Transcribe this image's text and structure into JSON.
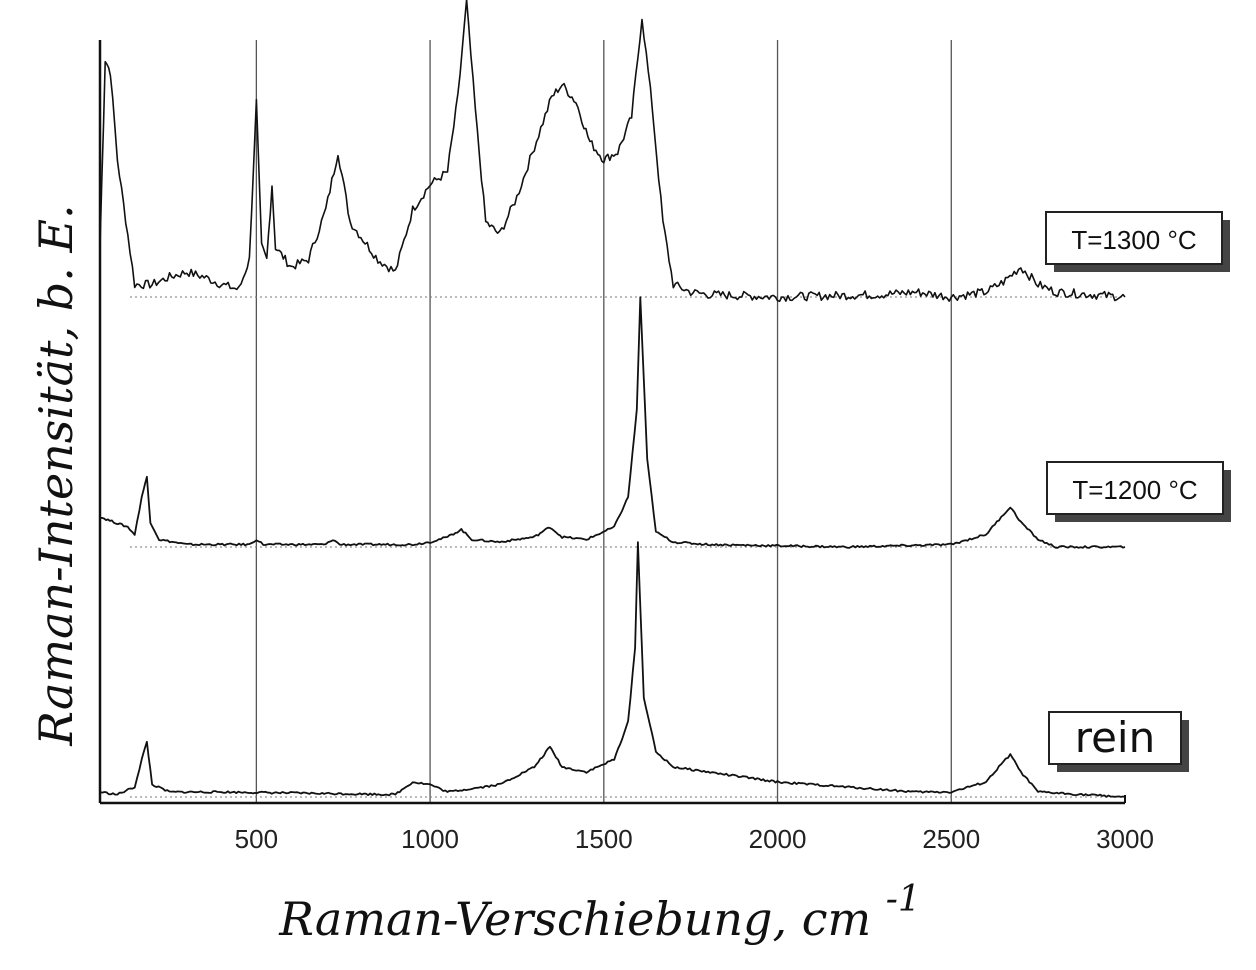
{
  "chart_data": {
    "type": "line",
    "xlabel": "Raman-Verschiebung, cm",
    "xlabel_sup": "-1",
    "ylabel": "Raman-Intensität, b. E.",
    "xlim": [
      50,
      3000
    ],
    "xticks": [
      500,
      1000,
      1500,
      2000,
      2500,
      3000
    ],
    "grid": "vertical at 500, 1000, 1500, 2000, 2500",
    "series": [
      {
        "name": "T=1300 °C",
        "offset": 2.0,
        "points": [
          [
            50,
            0.2
          ],
          [
            65,
            0.95
          ],
          [
            80,
            0.9
          ],
          [
            100,
            0.55
          ],
          [
            130,
            0.25
          ],
          [
            150,
            0.05
          ],
          [
            200,
            0.05
          ],
          [
            250,
            0.08
          ],
          [
            300,
            0.1
          ],
          [
            350,
            0.08
          ],
          [
            400,
            0.05
          ],
          [
            450,
            0.03
          ],
          [
            480,
            0.15
          ],
          [
            500,
            0.78
          ],
          [
            515,
            0.2
          ],
          [
            530,
            0.15
          ],
          [
            545,
            0.45
          ],
          [
            555,
            0.2
          ],
          [
            600,
            0.12
          ],
          [
            650,
            0.15
          ],
          [
            700,
            0.35
          ],
          [
            735,
            0.58
          ],
          [
            770,
            0.3
          ],
          [
            850,
            0.15
          ],
          [
            900,
            0.1
          ],
          [
            950,
            0.35
          ],
          [
            1000,
            0.45
          ],
          [
            1050,
            0.5
          ],
          [
            1080,
            0.8
          ],
          [
            1105,
            1.18
          ],
          [
            1130,
            0.75
          ],
          [
            1160,
            0.3
          ],
          [
            1200,
            0.25
          ],
          [
            1250,
            0.4
          ],
          [
            1300,
            0.6
          ],
          [
            1350,
            0.8
          ],
          [
            1380,
            0.85
          ],
          [
            1420,
            0.78
          ],
          [
            1460,
            0.62
          ],
          [
            1500,
            0.55
          ],
          [
            1540,
            0.58
          ],
          [
            1580,
            0.72
          ],
          [
            1610,
            1.12
          ],
          [
            1640,
            0.75
          ],
          [
            1670,
            0.3
          ],
          [
            1700,
            0.05
          ],
          [
            1750,
            0.02
          ],
          [
            1800,
            0.01
          ],
          [
            2000,
            0.0
          ],
          [
            2300,
            0.01
          ],
          [
            2400,
            0.02
          ],
          [
            2500,
            0.0
          ],
          [
            2600,
            0.02
          ],
          [
            2650,
            0.06
          ],
          [
            2700,
            0.12
          ],
          [
            2750,
            0.05
          ],
          [
            2800,
            0.02
          ],
          [
            2900,
            0.01
          ],
          [
            3000,
            0.0
          ]
        ]
      },
      {
        "name": "T=1200 °C",
        "offset": 1.0,
        "points": [
          [
            50,
            0.12
          ],
          [
            90,
            0.1
          ],
          [
            130,
            0.08
          ],
          [
            150,
            0.05
          ],
          [
            170,
            0.2
          ],
          [
            185,
            0.28
          ],
          [
            195,
            0.1
          ],
          [
            220,
            0.03
          ],
          [
            300,
            0.01
          ],
          [
            480,
            0.01
          ],
          [
            500,
            0.03
          ],
          [
            520,
            0.01
          ],
          [
            700,
            0.01
          ],
          [
            720,
            0.03
          ],
          [
            740,
            0.01
          ],
          [
            950,
            0.01
          ],
          [
            1000,
            0.02
          ],
          [
            1050,
            0.04
          ],
          [
            1090,
            0.07
          ],
          [
            1120,
            0.03
          ],
          [
            1200,
            0.02
          ],
          [
            1300,
            0.04
          ],
          [
            1345,
            0.08
          ],
          [
            1380,
            0.04
          ],
          [
            1450,
            0.03
          ],
          [
            1530,
            0.08
          ],
          [
            1570,
            0.2
          ],
          [
            1595,
            0.55
          ],
          [
            1605,
            1.0
          ],
          [
            1625,
            0.35
          ],
          [
            1650,
            0.06
          ],
          [
            1700,
            0.02
          ],
          [
            1800,
            0.01
          ],
          [
            2200,
            0.0
          ],
          [
            2500,
            0.01
          ],
          [
            2600,
            0.05
          ],
          [
            2650,
            0.13
          ],
          [
            2670,
            0.16
          ],
          [
            2700,
            0.1
          ],
          [
            2750,
            0.03
          ],
          [
            2800,
            0.0
          ],
          [
            3000,
            0.0
          ]
        ]
      },
      {
        "name": "rein",
        "offset": 0.0,
        "points": [
          [
            50,
            0.02
          ],
          [
            100,
            0.01
          ],
          [
            150,
            0.04
          ],
          [
            170,
            0.15
          ],
          [
            185,
            0.22
          ],
          [
            200,
            0.05
          ],
          [
            250,
            0.02
          ],
          [
            400,
            0.02
          ],
          [
            900,
            0.01
          ],
          [
            950,
            0.06
          ],
          [
            1000,
            0.05
          ],
          [
            1050,
            0.02
          ],
          [
            1200,
            0.05
          ],
          [
            1300,
            0.12
          ],
          [
            1345,
            0.2
          ],
          [
            1380,
            0.12
          ],
          [
            1450,
            0.1
          ],
          [
            1530,
            0.15
          ],
          [
            1570,
            0.3
          ],
          [
            1590,
            0.6
          ],
          [
            1598,
            1.02
          ],
          [
            1615,
            0.4
          ],
          [
            1650,
            0.18
          ],
          [
            1700,
            0.12
          ],
          [
            1800,
            0.1
          ],
          [
            1900,
            0.08
          ],
          [
            2000,
            0.06
          ],
          [
            2200,
            0.04
          ],
          [
            2400,
            0.02
          ],
          [
            2500,
            0.02
          ],
          [
            2600,
            0.06
          ],
          [
            2650,
            0.14
          ],
          [
            2670,
            0.17
          ],
          [
            2700,
            0.1
          ],
          [
            2750,
            0.02
          ],
          [
            3000,
            0.0
          ]
        ]
      }
    ]
  }
}
